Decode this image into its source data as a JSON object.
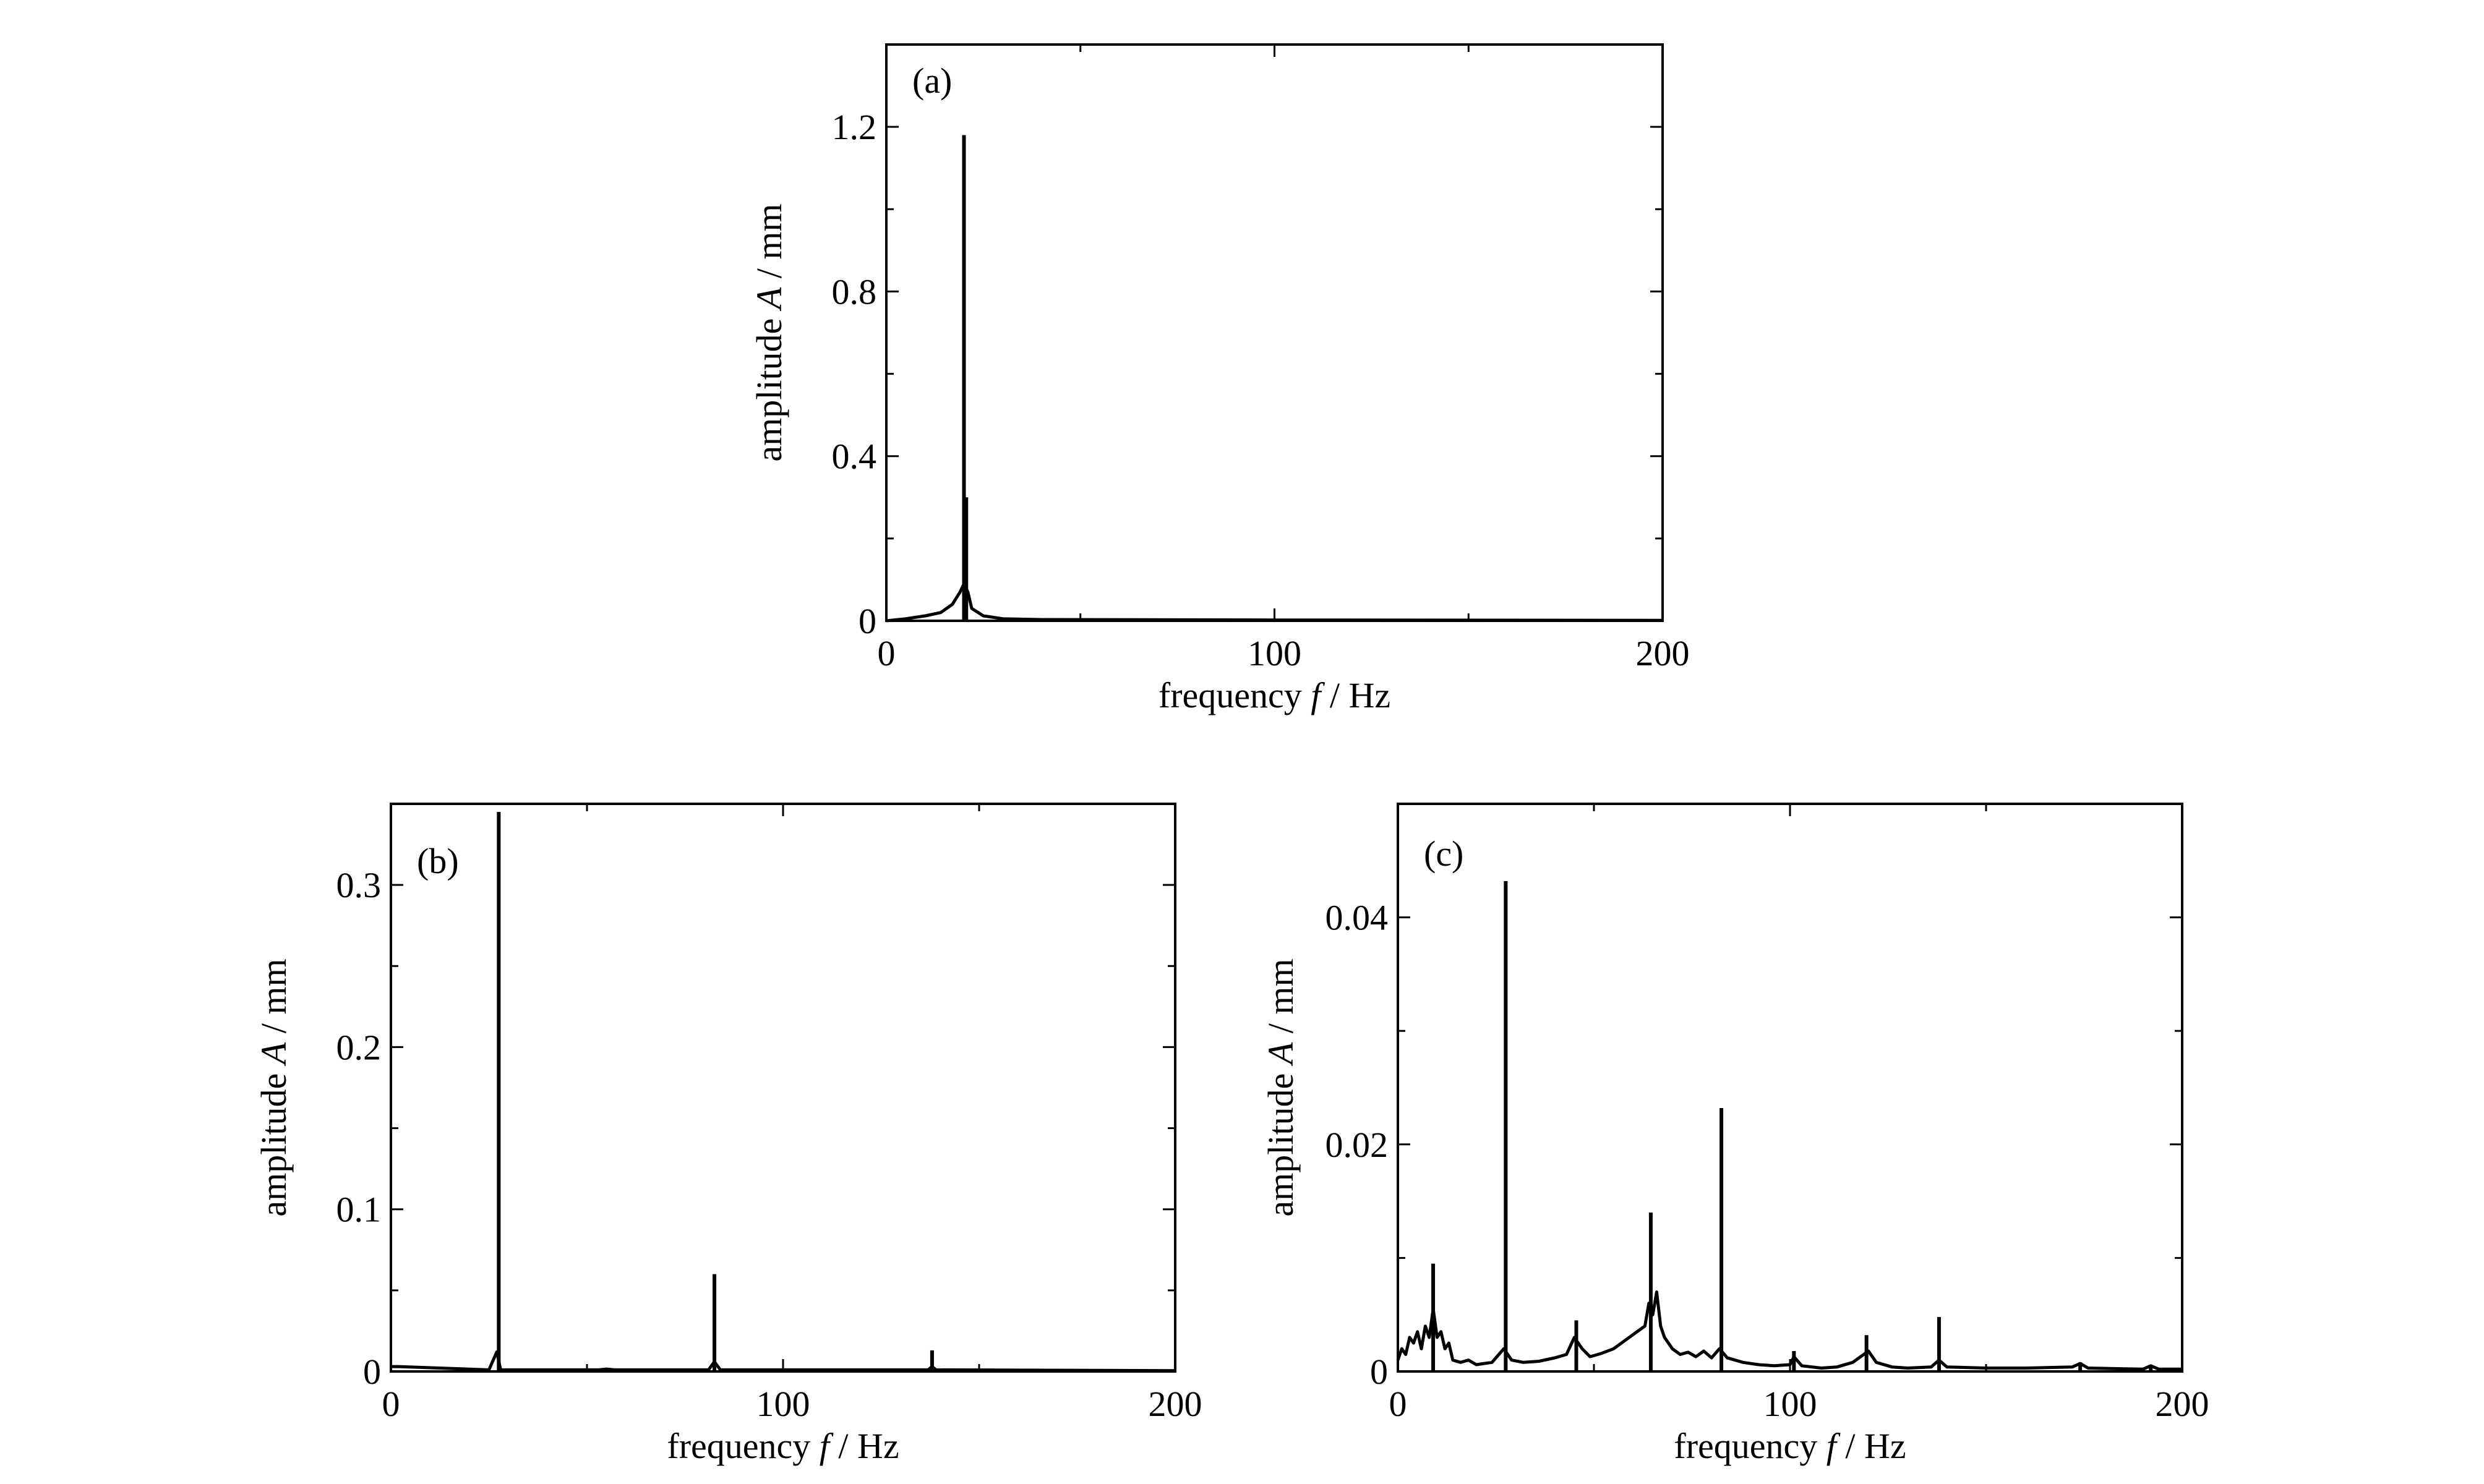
{
  "chart_data": [
    {
      "type": "line",
      "panel_label": "(a)",
      "xlabel": {
        "prefix": "frequency ",
        "symbol": "f",
        "suffix": " / Hz"
      },
      "ylabel": {
        "prefix": "amplitude ",
        "symbol": "A",
        "suffix": " / mm"
      },
      "xlim": [
        0,
        200
      ],
      "ylim": [
        0,
        1.4
      ],
      "x_ticks": [
        0,
        100,
        200
      ],
      "x_tick_labels": [
        "0",
        "100",
        "200"
      ],
      "x_minor_ticks": [
        50,
        150
      ],
      "y_ticks": [
        0,
        0.4,
        0.8,
        1.2
      ],
      "y_tick_labels": [
        "0",
        "0.4",
        "0.8",
        "1.2"
      ],
      "y_minor_ticks": [
        0.2,
        0.6,
        1.0
      ],
      "grid": false,
      "series": [
        {
          "baseline": [
            [
              0,
              0.0
            ],
            [
              5,
              0.005
            ],
            [
              10,
              0.012
            ],
            [
              14,
              0.02
            ],
            [
              17,
              0.04
            ],
            [
              19,
              0.07
            ],
            [
              20,
              0.09
            ],
            [
              21,
              0.07
            ],
            [
              22,
              0.03
            ],
            [
              25,
              0.012
            ],
            [
              30,
              0.005
            ],
            [
              40,
              0.003
            ],
            [
              100,
              0.002
            ],
            [
              200,
              0.001
            ]
          ],
          "peaks": [
            [
              20,
              1.18
            ],
            [
              20.6,
              0.3
            ]
          ]
        }
      ]
    },
    {
      "type": "line",
      "panel_label": "(b)",
      "xlabel": {
        "prefix": "frequency ",
        "symbol": "f",
        "suffix": " / Hz"
      },
      "ylabel": {
        "prefix": "amplitude ",
        "symbol": "A",
        "suffix": " / mm"
      },
      "xlim": [
        0,
        200
      ],
      "ylim": [
        0,
        0.35
      ],
      "x_ticks": [
        0,
        100,
        200
      ],
      "x_tick_labels": [
        "0",
        "100",
        "200"
      ],
      "x_minor_ticks": [
        50,
        150
      ],
      "y_ticks": [
        0,
        0.1,
        0.2,
        0.3
      ],
      "y_tick_labels": [
        "0",
        "0.1",
        "0.2",
        "0.3"
      ],
      "y_minor_ticks": [
        0.05,
        0.15,
        0.25
      ],
      "grid": false,
      "series": [
        {
          "baseline": [
            [
              0,
              0.003
            ],
            [
              2,
              0.003
            ],
            [
              25,
              0.001
            ],
            [
              27,
              0.012
            ],
            [
              28,
              0.001
            ],
            [
              53,
              0.001
            ],
            [
              55,
              0.0015
            ],
            [
              57,
              0.001
            ],
            [
              81,
              0.001
            ],
            [
              82.5,
              0.006
            ],
            [
              84,
              0.001
            ],
            [
              137,
              0.001
            ],
            [
              138,
              0.003
            ],
            [
              139,
              0.001
            ],
            [
              200,
              0.0005
            ]
          ],
          "peaks": [
            [
              27.5,
              0.345
            ],
            [
              82.5,
              0.06
            ],
            [
              138,
              0.013
            ]
          ]
        }
      ]
    },
    {
      "type": "line",
      "panel_label": "(c)",
      "xlabel": {
        "prefix": "frequency ",
        "symbol": "f",
        "suffix": " / Hz"
      },
      "ylabel": {
        "prefix": "amplitude ",
        "symbol": "A",
        "suffix": " / mm"
      },
      "xlim": [
        0,
        200
      ],
      "ylim": [
        0,
        0.05
      ],
      "x_ticks": [
        0,
        100,
        200
      ],
      "x_tick_labels": [
        "0",
        "100",
        "200"
      ],
      "x_minor_ticks": [
        50,
        150
      ],
      "y_ticks": [
        0,
        0.02,
        0.04
      ],
      "y_tick_labels": [
        "0",
        "0.02",
        "0.04"
      ],
      "y_minor_ticks": [
        0.01,
        0.03
      ],
      "grid": false,
      "series": [
        {
          "baseline": [
            [
              0,
              0.001
            ],
            [
              1,
              0.002
            ],
            [
              2,
              0.0015
            ],
            [
              3,
              0.003
            ],
            [
              4,
              0.0025
            ],
            [
              5,
              0.0035
            ],
            [
              6,
              0.002
            ],
            [
              7,
              0.004
            ],
            [
              8,
              0.003
            ],
            [
              9,
              0.0055
            ],
            [
              10,
              0.003
            ],
            [
              11,
              0.0035
            ],
            [
              12,
              0.002
            ],
            [
              13,
              0.0025
            ],
            [
              14,
              0.001
            ],
            [
              16,
              0.0008
            ],
            [
              18,
              0.001
            ],
            [
              20,
              0.0006
            ],
            [
              24,
              0.0008
            ],
            [
              27,
              0.002
            ],
            [
              29,
              0.001
            ],
            [
              32,
              0.0008
            ],
            [
              36,
              0.0009
            ],
            [
              40,
              0.0012
            ],
            [
              43,
              0.0015
            ],
            [
              45,
              0.003
            ],
            [
              47,
              0.002
            ],
            [
              49,
              0.0013
            ],
            [
              52,
              0.0016
            ],
            [
              55,
              0.002
            ],
            [
              57,
              0.0025
            ],
            [
              59,
              0.003
            ],
            [
              61,
              0.0035
            ],
            [
              63,
              0.004
            ],
            [
              64,
              0.006
            ],
            [
              65,
              0.005
            ],
            [
              66,
              0.007
            ],
            [
              67,
              0.004
            ],
            [
              68,
              0.003
            ],
            [
              70,
              0.002
            ],
            [
              72,
              0.0015
            ],
            [
              74,
              0.0017
            ],
            [
              76,
              0.0013
            ],
            [
              78,
              0.0018
            ],
            [
              80,
              0.0012
            ],
            [
              82,
              0.002
            ],
            [
              84,
              0.0012
            ],
            [
              88,
              0.0008
            ],
            [
              92,
              0.0006
            ],
            [
              96,
              0.0005
            ],
            [
              100,
              0.0006
            ],
            [
              101,
              0.0013
            ],
            [
              103,
              0.0005
            ],
            [
              108,
              0.0003
            ],
            [
              112,
              0.0004
            ],
            [
              116,
              0.0008
            ],
            [
              118,
              0.0013
            ],
            [
              120,
              0.0018
            ],
            [
              122,
              0.0008
            ],
            [
              126,
              0.0004
            ],
            [
              130,
              0.0003
            ],
            [
              136,
              0.0004
            ],
            [
              138,
              0.001
            ],
            [
              140,
              0.0004
            ],
            [
              150,
              0.0003
            ],
            [
              160,
              0.0003
            ],
            [
              172,
              0.0004
            ],
            [
              174,
              0.0007
            ],
            [
              176,
              0.0003
            ],
            [
              190,
              0.0002
            ],
            [
              192,
              0.0005
            ],
            [
              194,
              0.0002
            ],
            [
              200,
              0.0002
            ]
          ],
          "peaks": [
            [
              9,
              0.0095
            ],
            [
              27.5,
              0.0432
            ],
            [
              45.5,
              0.0045
            ],
            [
              64.5,
              0.014
            ],
            [
              82.5,
              0.0232
            ],
            [
              101,
              0.0018
            ],
            [
              119.5,
              0.0032
            ],
            [
              138,
              0.0048
            ],
            [
              174,
              0.0008
            ],
            [
              192,
              0.0005
            ]
          ]
        }
      ]
    }
  ]
}
